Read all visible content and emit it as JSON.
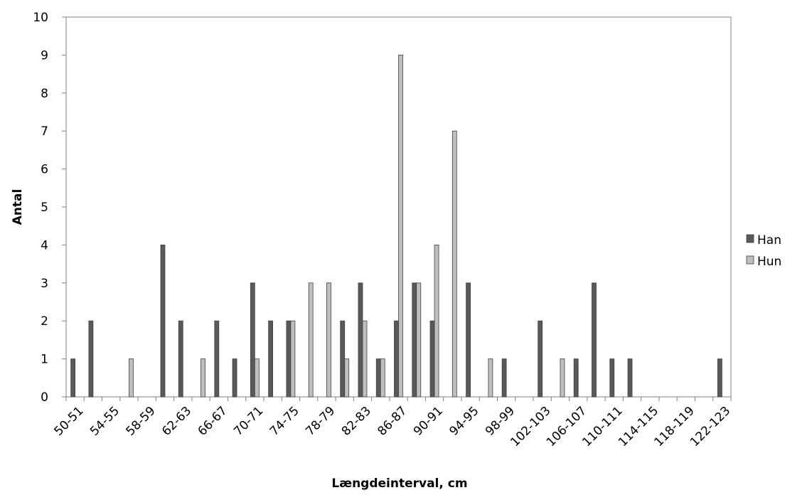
{
  "chart_data": {
    "type": "bar",
    "title": "",
    "xlabel": "Længdeinterval, cm",
    "ylabel": "Antal",
    "ylim": [
      0,
      10
    ],
    "yticks": [
      0,
      1,
      2,
      3,
      4,
      5,
      6,
      7,
      8,
      9,
      10
    ],
    "grid": false,
    "legend_position": "right",
    "categories": [
      "50-51",
      "52-53",
      "54-55",
      "56-57",
      "58-59",
      "60-61",
      "62-63",
      "64-65",
      "66-67",
      "68-69",
      "70-71",
      "72-73",
      "74-75",
      "76-77",
      "78-79",
      "80-81",
      "82-83",
      "84-85",
      "86-87",
      "88-89",
      "90-91",
      "92-93",
      "94-95",
      "96-97",
      "98-99",
      "100-101",
      "102-103",
      "104-105",
      "106-107",
      "108-109",
      "110-111",
      "112-113",
      "114-115",
      "116-117",
      "118-119",
      "120-121",
      "122-123"
    ],
    "tick_labels_shown": [
      "50-51",
      "54-55",
      "58-59",
      "62-63",
      "66-67",
      "70-71",
      "74-75",
      "78-79",
      "82-83",
      "86-87",
      "90-91",
      "94-95",
      "98-99",
      "102-103",
      "106-107",
      "110-111",
      "114-115",
      "118-119",
      "122-123"
    ],
    "series": [
      {
        "name": "Han",
        "color": "#595959",
        "values": [
          1,
          2,
          0,
          0,
          0,
          4,
          2,
          0,
          2,
          1,
          3,
          2,
          2,
          0,
          0,
          2,
          3,
          1,
          2,
          3,
          2,
          0,
          3,
          0,
          1,
          0,
          2,
          0,
          1,
          3,
          1,
          1,
          0,
          0,
          0,
          0,
          1
        ]
      },
      {
        "name": "Hun",
        "color": "#bfbfbf",
        "values": [
          0,
          0,
          0,
          1,
          0,
          0,
          0,
          1,
          0,
          0,
          1,
          0,
          2,
          3,
          3,
          1,
          2,
          1,
          9,
          3,
          4,
          7,
          0,
          1,
          0,
          0,
          0,
          1,
          0,
          0,
          0,
          0,
          0,
          0,
          0,
          0,
          0
        ]
      }
    ]
  }
}
